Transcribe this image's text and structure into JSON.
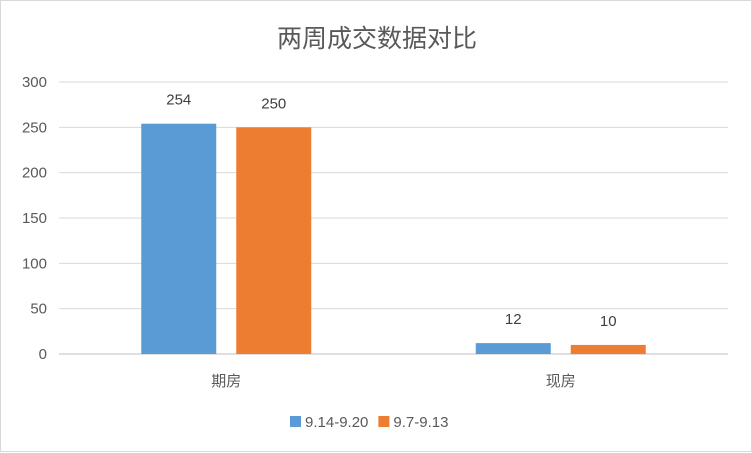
{
  "chart_data": {
    "type": "bar",
    "title": "两周成交数据对比",
    "categories": [
      "期房",
      "现房"
    ],
    "series": [
      {
        "name": "9.14-9.20",
        "values": [
          254,
          12
        ],
        "color": "#5b9bd5"
      },
      {
        "name": "9.7-9.13",
        "values": [
          250,
          10
        ],
        "color": "#ed7d31"
      }
    ],
    "xlabel": "",
    "ylabel": "",
    "ylim": [
      0,
      300
    ],
    "yticks": [
      0,
      50,
      100,
      150,
      200,
      250,
      300
    ],
    "grid": true,
    "data_labels": true,
    "legend_position": "bottom"
  }
}
